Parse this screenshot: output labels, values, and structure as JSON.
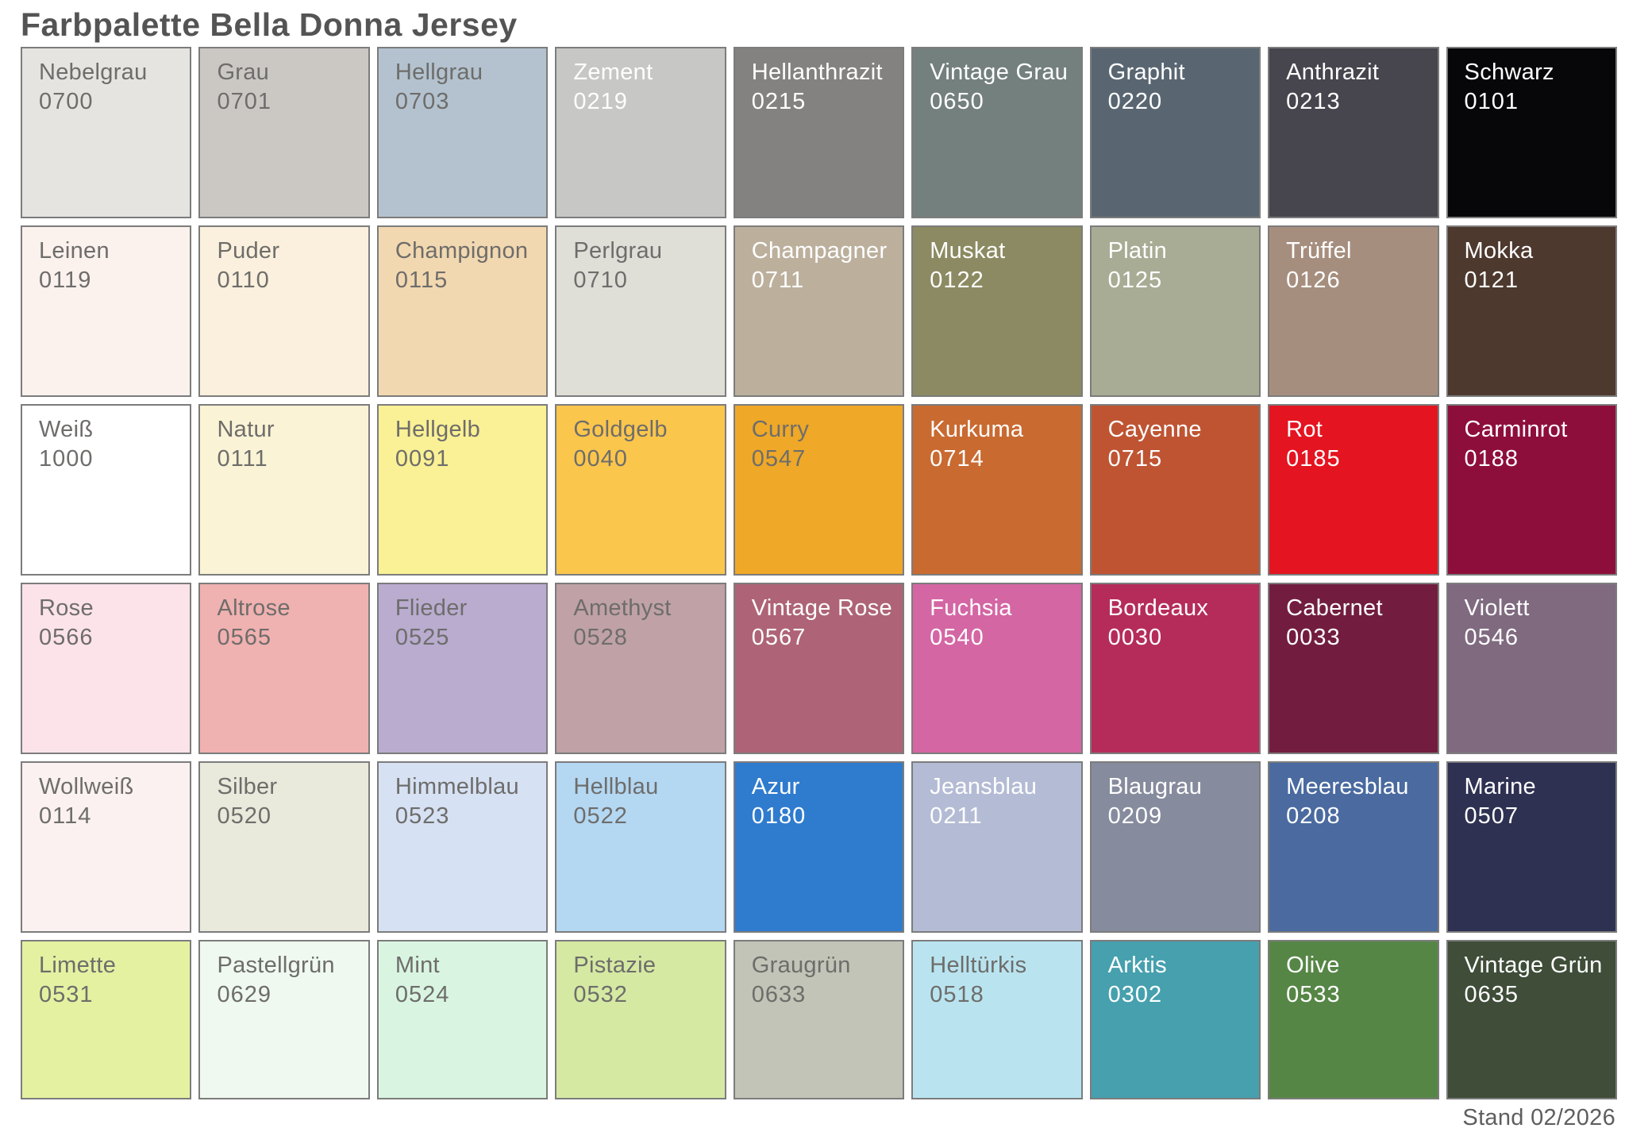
{
  "title": "Farbpalette Bella Donna Jersey",
  "footer": "Stand 02/2026",
  "palette": {
    "columns": 9,
    "rows": 6,
    "border_color": "#7c7c7c",
    "dark_text_color": "#6e6d6b",
    "light_text_color": "#ffffff",
    "swatches": [
      {
        "name": "Nebelgrau",
        "code": "0700",
        "color": "#e5e4e1",
        "text": "dark"
      },
      {
        "name": "Grau",
        "code": "0701",
        "color": "#cbc8c4",
        "text": "dark"
      },
      {
        "name": "Hellgrau",
        "code": "0703",
        "color": "#b3c2ce",
        "text": "dark"
      },
      {
        "name": "Zement",
        "code": "0219",
        "color": "#c7c7c5",
        "text": "light"
      },
      {
        "name": "Hellanthrazit",
        "code": "0215",
        "color": "#838280",
        "text": "light"
      },
      {
        "name": "Vintage Grau",
        "code": "0650",
        "color": "#74807d",
        "text": "light"
      },
      {
        "name": "Graphit",
        "code": "0220",
        "color": "#596672",
        "text": "light"
      },
      {
        "name": "Anthrazit",
        "code": "0213",
        "color": "#47454d",
        "text": "light"
      },
      {
        "name": "Schwarz",
        "code": "0101",
        "color": "#070608",
        "text": "light"
      },
      {
        "name": "Leinen",
        "code": "0119",
        "color": "#fbf1ed",
        "text": "dark"
      },
      {
        "name": "Puder",
        "code": "0110",
        "color": "#faf0dd",
        "text": "dark"
      },
      {
        "name": "Champignon",
        "code": "0115",
        "color": "#f2d8b0",
        "text": "dark"
      },
      {
        "name": "Perlgrau",
        "code": "0710",
        "color": "#dfdfd8",
        "text": "dark"
      },
      {
        "name": "Champagner",
        "code": "0711",
        "color": "#bcb09d",
        "text": "light"
      },
      {
        "name": "Muskat",
        "code": "0122",
        "color": "#8c8a62",
        "text": "light"
      },
      {
        "name": "Platin",
        "code": "0125",
        "color": "#a9ac95",
        "text": "light"
      },
      {
        "name": "Trüffel",
        "code": "0126",
        "color": "#a68e7e",
        "text": "light"
      },
      {
        "name": "Mokka",
        "code": "0121",
        "color": "#4e392f",
        "text": "light"
      },
      {
        "name": "Weiß",
        "code": "1000",
        "color": "#ffffff",
        "text": "dark"
      },
      {
        "name": "Natur",
        "code": "0111",
        "color": "#faf3d5",
        "text": "dark"
      },
      {
        "name": "Hellgelb",
        "code": "0091",
        "color": "#faf095",
        "text": "dark"
      },
      {
        "name": "Goldgelb",
        "code": "0040",
        "color": "#fbc64c",
        "text": "dark"
      },
      {
        "name": "Curry",
        "code": "0547",
        "color": "#efa827",
        "text": "dark"
      },
      {
        "name": "Kurkuma",
        "code": "0714",
        "color": "#c96a31",
        "text": "light"
      },
      {
        "name": "Cayenne",
        "code": "0715",
        "color": "#bf5433",
        "text": "light"
      },
      {
        "name": "Rot",
        "code": "0185",
        "color": "#e41420",
        "text": "light"
      },
      {
        "name": "Carminrot",
        "code": "0188",
        "color": "#8e0e3b",
        "text": "light"
      },
      {
        "name": "Rose",
        "code": "0566",
        "color": "#fce3ea",
        "text": "dark"
      },
      {
        "name": "Altrose",
        "code": "0565",
        "color": "#f0b1b1",
        "text": "dark"
      },
      {
        "name": "Flieder",
        "code": "0525",
        "color": "#b9accf",
        "text": "dark"
      },
      {
        "name": "Amethyst",
        "code": "0528",
        "color": "#bfa1a6",
        "text": "dark"
      },
      {
        "name": "Vintage Rose",
        "code": "0567",
        "color": "#ae6476",
        "text": "light"
      },
      {
        "name": "Fuchsia",
        "code": "0540",
        "color": "#d466a4",
        "text": "light"
      },
      {
        "name": "Bordeaux",
        "code": "0030",
        "color": "#b52c5a",
        "text": "light"
      },
      {
        "name": "Cabernet",
        "code": "0033",
        "color": "#721d3f",
        "text": "light"
      },
      {
        "name": "Violett",
        "code": "0546",
        "color": "#7f6a80",
        "text": "light"
      },
      {
        "name": "Wollweiß",
        "code": "0114",
        "color": "#faf1f0",
        "text": "dark"
      },
      {
        "name": "Silber",
        "code": "0520",
        "color": "#e9e9dc",
        "text": "dark"
      },
      {
        "name": "Himmelblau",
        "code": "0523",
        "color": "#d6e1f3",
        "text": "dark"
      },
      {
        "name": "Hellblau",
        "code": "0522",
        "color": "#b4d7f2",
        "text": "dark"
      },
      {
        "name": "Azur",
        "code": "0180",
        "color": "#2f7bce",
        "text": "light"
      },
      {
        "name": "Jeansblau",
        "code": "0211",
        "color": "#b4bbd4",
        "text": "light"
      },
      {
        "name": "Blaugrau",
        "code": "0209",
        "color": "#868b9d",
        "text": "light"
      },
      {
        "name": "Meeresblau",
        "code": "0208",
        "color": "#4a6aa0",
        "text": "light"
      },
      {
        "name": "Marine",
        "code": "0507",
        "color": "#2e3152",
        "text": "light"
      },
      {
        "name": "Limette",
        "code": "0531",
        "color": "#e4f1a1",
        "text": "dark"
      },
      {
        "name": "Pastellgrün",
        "code": "0629",
        "color": "#eff9ef",
        "text": "dark"
      },
      {
        "name": "Mint",
        "code": "0524",
        "color": "#d9f5e1",
        "text": "dark"
      },
      {
        "name": "Pistazie",
        "code": "0532",
        "color": "#d5e9a3",
        "text": "dark"
      },
      {
        "name": "Graugrün",
        "code": "0633",
        "color": "#c1c4b6",
        "text": "dark"
      },
      {
        "name": "Helltürkis",
        "code": "0518",
        "color": "#b9e4ef",
        "text": "dark"
      },
      {
        "name": "Arktis",
        "code": "0302",
        "color": "#46a0ae",
        "text": "light"
      },
      {
        "name": "Olive",
        "code": "0533",
        "color": "#568646",
        "text": "light"
      },
      {
        "name": "Vintage Grün",
        "code": "0635",
        "color": "#3f4d39",
        "text": "light"
      }
    ]
  }
}
